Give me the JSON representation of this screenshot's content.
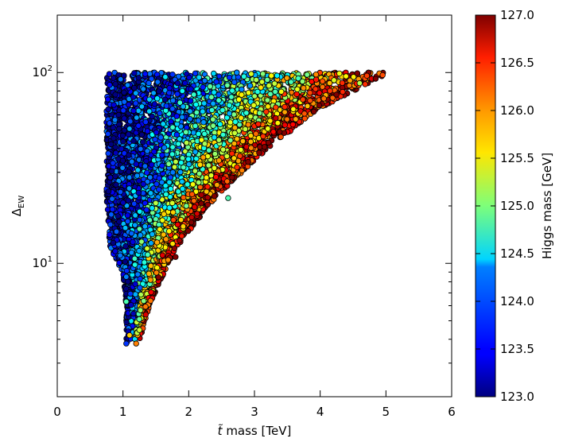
{
  "chart_data": {
    "type": "scatter",
    "x_label": "t̃ mass [TeV]",
    "x_label_prefix": "t̃",
    "x_label_suffix": " mass [TeV]",
    "y_label": "Δ_EW",
    "y_label_main": "Δ",
    "y_label_sub": "EW",
    "x_range": [
      0,
      6
    ],
    "y_range": [
      2,
      200
    ],
    "y_scale": "log",
    "grid": false,
    "x_ticks": [
      0,
      1,
      2,
      3,
      4,
      5,
      6
    ],
    "x_tick_labels": [
      "0",
      "1",
      "2",
      "3",
      "4",
      "5",
      "6"
    ],
    "y_major_ticks": [
      10,
      100
    ],
    "y_tick_labels_base": [
      "10",
      "10"
    ],
    "y_tick_labels_exp": [
      "1",
      "2"
    ],
    "colorbar": {
      "label": "Higgs mass [GeV]",
      "range": [
        123.0,
        127.0
      ],
      "ticks": [
        123.0,
        123.5,
        124.0,
        124.5,
        125.0,
        125.5,
        126.0,
        126.5,
        127.0
      ],
      "tick_labels": [
        "123.0",
        "123.5",
        "124.0",
        "124.5",
        "125.0",
        "125.5",
        "126.0",
        "126.5",
        "127.0"
      ],
      "colormap": "jet"
    },
    "region_boundary": {
      "upper_delta": 100,
      "left_edge": [
        [
          0.75,
          100
        ],
        [
          0.75,
          22
        ],
        [
          0.8,
          12
        ],
        [
          1.0,
          9
        ],
        [
          1.05,
          6
        ],
        [
          1.05,
          3.8
        ]
      ],
      "right_edge": [
        [
          1.25,
          3.8
        ],
        [
          1.4,
          6
        ],
        [
          1.8,
          12
        ],
        [
          2.4,
          22
        ],
        [
          3.2,
          40
        ],
        [
          4.0,
          65
        ],
        [
          5.0,
          98
        ]
      ]
    },
    "highlighted_points": [
      {
        "x": 1.05,
        "y": 3.8,
        "mh": 123.7
      },
      {
        "x": 1.2,
        "y": 3.8,
        "mh": 126.0
      },
      {
        "x": 1.08,
        "y": 4.4,
        "mh": 123.2
      },
      {
        "x": 1.1,
        "y": 4.2,
        "mh": 125.7
      },
      {
        "x": 2.6,
        "y": 22,
        "mh": 124.8
      },
      {
        "x": 1.8,
        "y": 10.8,
        "mh": 127.0
      },
      {
        "x": 4.9,
        "y": 99,
        "mh": 126.0
      },
      {
        "x": 4.95,
        "y": 97,
        "mh": 126.2
      },
      {
        "x": 4.6,
        "y": 88,
        "mh": 125.2
      },
      {
        "x": 1.05,
        "y": 8.5,
        "mh": 124.0
      },
      {
        "x": 1.05,
        "y": 6.3,
        "mh": 124.8
      }
    ]
  }
}
